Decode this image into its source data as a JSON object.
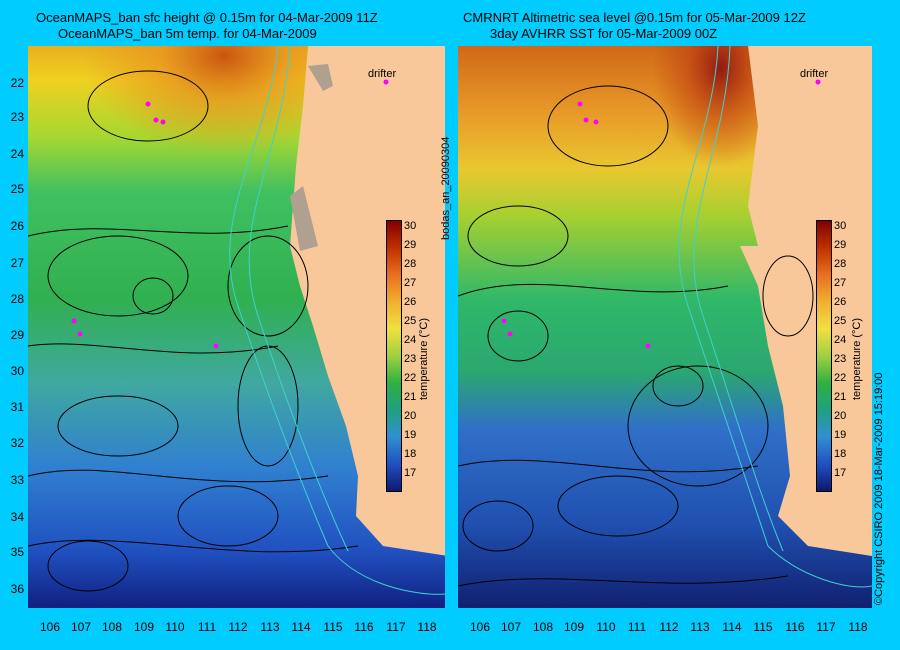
{
  "left_panel": {
    "title_line1": "OceanMAPS_ban sfc height @ 0.15m for 04-Mar-2009 11Z",
    "title_line2": "OceanMAPS_ban 5m temp. for 04-Mar-2009",
    "drifter_label": "drifter"
  },
  "right_panel": {
    "title_line1": "CMRNRT Altimetric sea level  @0.15m  for 05-Mar-2009 12Z",
    "title_line2": "3day AVHRR SST for 05-Mar-2009 00Z",
    "drifter_label": "drifter"
  },
  "y_axis_labels": [
    "22",
    "23",
    "24",
    "25",
    "26",
    "27",
    "28",
    "29",
    "30",
    "31",
    "32",
    "33",
    "34",
    "35",
    "36"
  ],
  "x_axis_labels": [
    "106",
    "107",
    "108",
    "109",
    "110",
    "111",
    "112",
    "113",
    "114",
    "115",
    "116",
    "117",
    "118"
  ],
  "colorbar": {
    "ticks": [
      "30",
      "29",
      "28",
      "27",
      "26",
      "25",
      "24",
      "23",
      "22",
      "21",
      "20",
      "19",
      "18",
      "17"
    ],
    "label": "temperature (°C)",
    "range": [
      16,
      30.5
    ]
  },
  "side_text": {
    "run_id": "bodas_an_20090304",
    "copyright": "©Copyright CSIRO 2009  18-Mar-2009 15:19:00"
  },
  "colors": {
    "background": "#00ccff",
    "land": "#f9c89a",
    "contour": "#000000",
    "isobath": "#40d0d0",
    "drifter": "#ff00ff"
  }
}
